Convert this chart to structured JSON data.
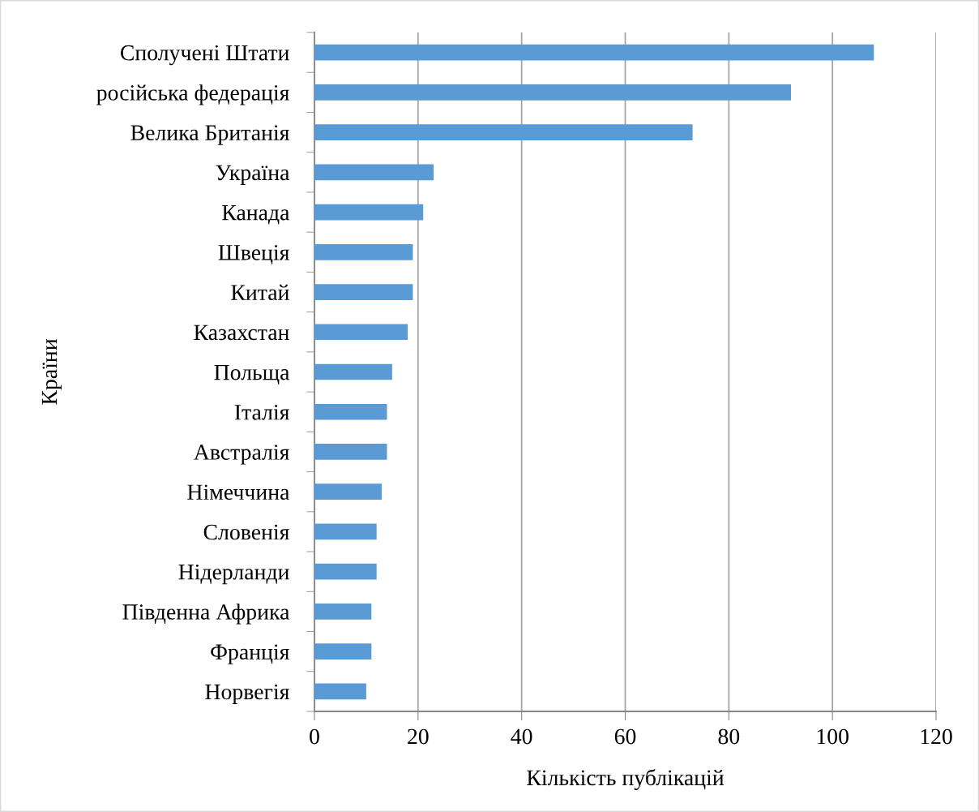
{
  "chart_data": {
    "type": "bar",
    "orientation": "horizontal",
    "xlabel": "Кількість публікацій",
    "ylabel": "Країни",
    "categories": [
      "Сполучені Штати",
      "російська федерація",
      "Велика Британія",
      "Україна",
      "Канада",
      "Швеція",
      "Китай",
      "Казахстан",
      "Польща",
      "Італія",
      "Австралія",
      "Німеччина",
      "Словенія",
      "Нідерланди",
      "Південна Африка",
      "Франція",
      "Норвегія"
    ],
    "values": [
      108,
      92,
      73,
      23,
      21,
      19,
      19,
      18,
      15,
      14,
      14,
      13,
      12,
      12,
      11,
      11,
      10
    ],
    "color": "#5b9bd5",
    "xlim": [
      0,
      120
    ],
    "xticks": [
      0,
      20,
      40,
      60,
      80,
      100,
      120
    ],
    "grid": "x"
  }
}
